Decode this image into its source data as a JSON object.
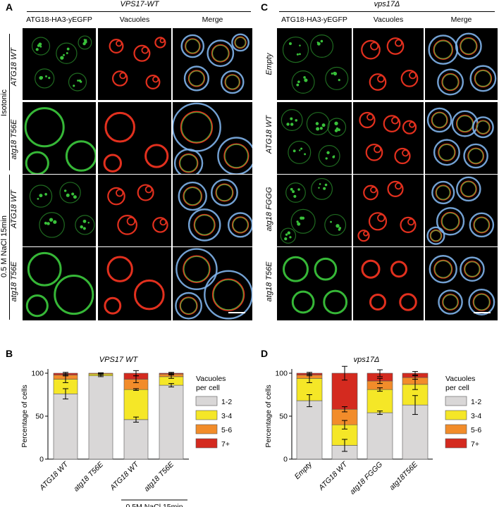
{
  "panels": {
    "A": {
      "letter": "A",
      "title": "VPS17-WT",
      "columns": [
        "ATG18-HA3-yEGFP",
        "Vacuoles",
        "Merge"
      ],
      "rows": [
        "ATG18 WT",
        "atg18 T56E",
        "ATG18 WT",
        "atg18 T56E"
      ],
      "groups": [
        "Isotonic",
        "0.5 M NaCl 15min"
      ]
    },
    "B": {
      "letter": "B"
    },
    "C": {
      "letter": "C",
      "title": "vps17Δ",
      "columns": [
        "ATG18-HA3-yEGFP",
        "Vacuoles",
        "Merge"
      ],
      "rows": [
        "Empty",
        "ATG18 WT",
        "atg18 FGGG",
        "atg18 T56E"
      ]
    },
    "D": {
      "letter": "D"
    }
  },
  "colors": {
    "c12": "#d9d7d7",
    "c34": "#f5e727",
    "c56": "#f28c2a",
    "c7": "#d42a1f",
    "gfp": "#39c13a",
    "vac": "#e2301e",
    "merge": "#7fb2ea"
  },
  "chart_data": [
    {
      "type": "bar",
      "stacked": true,
      "title": "VPS17 WT",
      "ylabel": "Percentage of cells",
      "categories": [
        "ATG18 WT",
        "atg18 T56E",
        "ATG18 WT",
        "atg18 T56E"
      ],
      "group_label": "0.5M NaCl 15min",
      "yticks": [
        "0",
        "50",
        "100"
      ],
      "ylim": [
        0,
        100
      ],
      "legend_title": "Vacuoles per cell",
      "series": [
        {
          "name": "1-2",
          "values": [
            76,
            97,
            46,
            86
          ],
          "errors": [
            6,
            1,
            3,
            2
          ]
        },
        {
          "name": "3-4",
          "values": [
            17,
            2,
            35,
            10
          ],
          "errors": [
            4,
            1,
            1,
            2
          ]
        },
        {
          "name": "5-6",
          "values": [
            5,
            1,
            12,
            3
          ],
          "errors": [
            1,
            0.5,
            4,
            1
          ]
        },
        {
          "name": "7+",
          "values": [
            2,
            0,
            7,
            1
          ],
          "errors": [
            1,
            0,
            3,
            1
          ]
        }
      ]
    },
    {
      "type": "bar",
      "stacked": true,
      "title": "vps17Δ",
      "ylabel": "Percentage of cells",
      "categories": [
        "Empty",
        "ATG18 WT",
        "atg18 FGGG",
        "atg18T56E"
      ],
      "yticks": [
        "0",
        "50",
        "100"
      ],
      "ylim": [
        0,
        100
      ],
      "legend_title": "Vacuoles per cell",
      "series": [
        {
          "name": "1-2",
          "values": [
            68,
            16,
            54,
            63
          ],
          "errors": [
            7,
            7,
            2,
            11
          ]
        },
        {
          "name": "3-4",
          "values": [
            26,
            24,
            27,
            24
          ],
          "errors": [
            5,
            5,
            2,
            6
          ]
        },
        {
          "name": "5-6",
          "values": [
            4,
            18,
            10,
            8
          ],
          "errors": [
            1,
            3,
            3,
            2
          ]
        },
        {
          "name": "7+",
          "values": [
            2,
            42,
            9,
            5
          ],
          "errors": [
            1,
            8,
            4,
            2
          ]
        }
      ]
    }
  ]
}
